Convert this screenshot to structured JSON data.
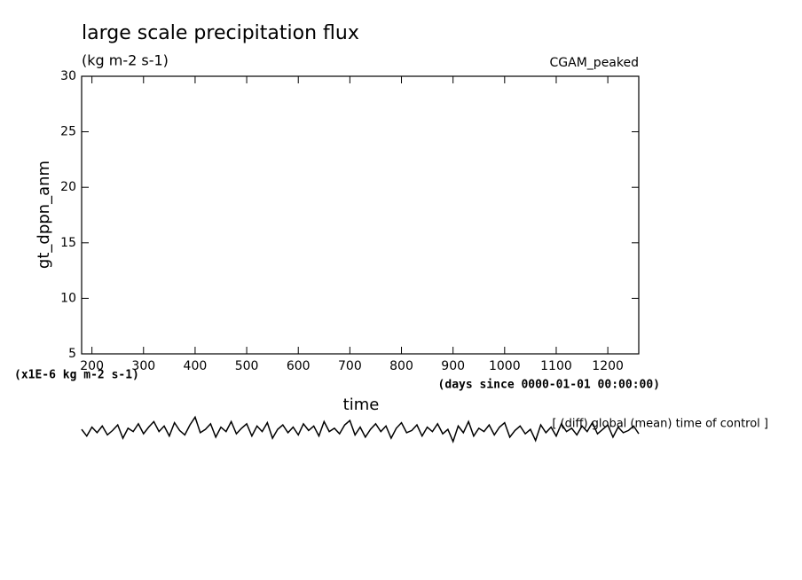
{
  "chart_data": {
    "type": "line",
    "title": "large scale precipitation flux",
    "subtitle": "(kg m-2 s-1)",
    "annotation_right": "CGAM_peaked",
    "y_label": "gt_dppn_anm",
    "x_label": "time",
    "y_unit_note": "(x1E-6 kg m-2 s-1)",
    "x_unit_note": "(days since 0000-01-01 00:00:00)",
    "series_note": "[ (diff) global (mean) time of control ]",
    "xlim": [
      180,
      1260
    ],
    "ylim": [
      5,
      30
    ],
    "xticks": [
      200,
      300,
      400,
      500,
      600,
      700,
      800,
      900,
      1000,
      1100,
      1200
    ],
    "yticks": [
      5,
      10,
      15,
      20,
      25,
      30
    ],
    "color": "#000000",
    "x": [
      180,
      190,
      200,
      210,
      220,
      230,
      240,
      250,
      260,
      270,
      280,
      290,
      300,
      310,
      320,
      330,
      340,
      350,
      360,
      370,
      380,
      390,
      400,
      410,
      420,
      430,
      440,
      450,
      460,
      470,
      480,
      490,
      500,
      510,
      520,
      530,
      540,
      550,
      560,
      570,
      580,
      590,
      600,
      610,
      620,
      630,
      640,
      650,
      660,
      670,
      680,
      690,
      700,
      710,
      720,
      730,
      740,
      750,
      760,
      770,
      780,
      790,
      800,
      810,
      820,
      830,
      840,
      850,
      860,
      870,
      880,
      890,
      900,
      910,
      920,
      930,
      940,
      950,
      960,
      970,
      980,
      990,
      1000,
      1010,
      1020,
      1030,
      1040,
      1050,
      1060,
      1070,
      1080,
      1090,
      1100,
      1110,
      1120,
      1130,
      1140,
      1150,
      1160,
      1170,
      1180,
      1190,
      1200,
      1210,
      1220,
      1230,
      1240,
      1250,
      1260
    ],
    "values": [
      -1.8,
      -2.4,
      -1.6,
      -2.1,
      -1.5,
      -2.3,
      -1.9,
      -1.4,
      -2.6,
      -1.7,
      -2.0,
      -1.3,
      -2.2,
      -1.6,
      -1.1,
      -2.0,
      -1.5,
      -2.4,
      -1.2,
      -1.9,
      -2.3,
      -1.4,
      -0.7,
      -2.1,
      -1.8,
      -1.3,
      -2.5,
      -1.6,
      -2.0,
      -1.1,
      -2.2,
      -1.7,
      -1.3,
      -2.4,
      -1.5,
      -2.0,
      -1.2,
      -2.6,
      -1.8,
      -1.4,
      -2.1,
      -1.6,
      -2.3,
      -1.3,
      -1.9,
      -1.5,
      -2.4,
      -1.1,
      -2.0,
      -1.7,
      -2.2,
      -1.4,
      -1.0,
      -2.3,
      -1.6,
      -2.5,
      -1.8,
      -1.3,
      -2.0,
      -1.5,
      -2.6,
      -1.7,
      -1.2,
      -2.1,
      -1.9,
      -1.4,
      -2.4,
      -1.6,
      -2.0,
      -1.3,
      -2.2,
      -1.8,
      -2.9,
      -1.5,
      -2.1,
      -1.1,
      -2.4,
      -1.7,
      -2.0,
      -1.4,
      -2.3,
      -1.6,
      -1.2,
      -2.5,
      -1.9,
      -1.5,
      -2.2,
      -1.8,
      -2.8,
      -1.4,
      -2.1,
      -1.6,
      -2.4,
      -1.3,
      -2.0,
      -1.7,
      -2.3,
      -1.5,
      -2.0,
      -1.2,
      -2.2,
      -1.8,
      -1.4,
      -2.5,
      -1.6,
      -2.1,
      -1.9,
      -1.5,
      -2.2
    ]
  }
}
